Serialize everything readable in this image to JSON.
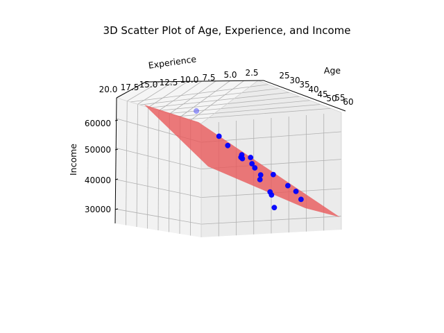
{
  "chart_data": {
    "type": "scatter",
    "projection": "3d",
    "title": "3D Scatter Plot of Age, Experience, and Income",
    "xlabel": "Age",
    "ylabel": "Experience",
    "zlabel": "Income",
    "x_ticks": [
      "25",
      "30",
      "35",
      "40",
      "45",
      "50",
      "55",
      "60"
    ],
    "y_ticks": [
      "20.0",
      "17.5",
      "15.0",
      "12.5",
      "10.0",
      "7.5",
      "5.0",
      "2.5"
    ],
    "z_ticks": [
      "30000",
      "40000",
      "50000",
      "60000"
    ],
    "xlim": [
      22,
      60
    ],
    "ylim": [
      1,
      20
    ],
    "zlim": [
      24000,
      67000
    ],
    "grid": true,
    "point_color": "#0000ff",
    "surface_color": "#e8595a",
    "points": [
      {
        "age": 24,
        "experience": 4.0,
        "income": 60500
      },
      {
        "age": 29,
        "experience": 3.0,
        "income": 53000
      },
      {
        "age": 32,
        "experience": 3.5,
        "income": 50000
      },
      {
        "age": 34,
        "experience": 2.0,
        "income": 47500
      },
      {
        "age": 35,
        "experience": 3.0,
        "income": 46500
      },
      {
        "age": 36,
        "experience": 3.5,
        "income": 46000
      },
      {
        "age": 37,
        "experience": 2.5,
        "income": 46500
      },
      {
        "age": 38,
        "experience": 3.0,
        "income": 44500
      },
      {
        "age": 39,
        "experience": 2.0,
        "income": 40000
      },
      {
        "age": 40,
        "experience": 4.0,
        "income": 43000
      },
      {
        "age": 41,
        "experience": 3.5,
        "income": 41000
      },
      {
        "age": 42,
        "experience": 1.5,
        "income": 41500
      },
      {
        "age": 43,
        "experience": 3.0,
        "income": 36000
      },
      {
        "age": 44,
        "experience": 3.5,
        "income": 35000
      },
      {
        "age": 46,
        "experience": 4.5,
        "income": 31000
      },
      {
        "age": 49,
        "experience": 4.0,
        "income": 37500
      },
      {
        "age": 50,
        "experience": 3.0,
        "income": 36000
      },
      {
        "age": 52,
        "experience": 3.5,
        "income": 33500
      }
    ],
    "regression_plane": {
      "type": "surface",
      "color": "#e8595a",
      "opacity": 0.8
    }
  }
}
